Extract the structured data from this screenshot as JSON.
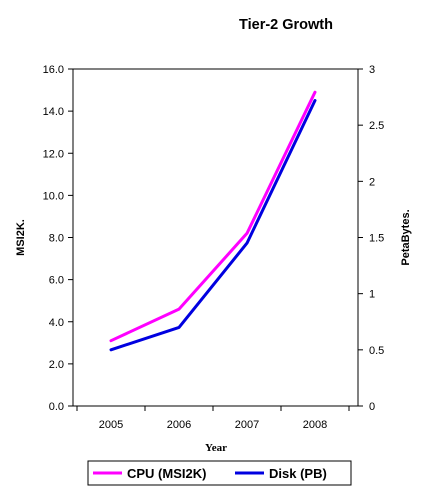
{
  "chart_data": {
    "type": "line",
    "title": "Tier-2 Growth",
    "xlabel": "Year",
    "ylabel": "MSI2K.",
    "y2label": "PetaBytes.",
    "categories": [
      "2005",
      "2006",
      "2007",
      "2008"
    ],
    "ylim": [
      0,
      16
    ],
    "y_ticks": [
      "0.0",
      "2.0",
      "4.0",
      "6.0",
      "8.0",
      "10.0",
      "12.0",
      "14.0",
      "16.0"
    ],
    "y2lim": [
      0,
      3
    ],
    "y2_ticks": [
      "0",
      "0.5",
      "1",
      "1.5",
      "2",
      "2.5",
      "3"
    ],
    "grid": false,
    "legend_position": "bottom",
    "series": [
      {
        "name": "CPU (MSI2K)",
        "axis": "left",
        "color": "#ff00ff",
        "values": [
          3.1,
          4.6,
          8.2,
          14.9
        ]
      },
      {
        "name": "Disk (PB)",
        "axis": "right",
        "color": "#0000e0",
        "values": [
          0.5,
          0.7,
          1.45,
          2.72
        ]
      }
    ]
  }
}
